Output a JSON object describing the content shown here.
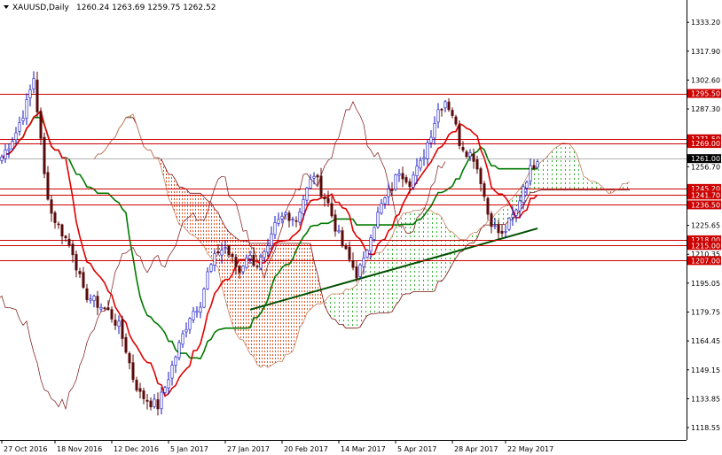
{
  "header": {
    "symbol": "XAUUSD,Daily",
    "ohlc": "1260.24 1263.69 1259.75 1262.52"
  },
  "colors": {
    "bull_candle": "#1010c0",
    "bear_candle": "#5a0a0a",
    "tenkan": "#e00000",
    "kijun": "#007a00",
    "trendline": "#005000",
    "span_a": "#c88060",
    "span_b": "#7a1010",
    "cloud_bear": "#e05020",
    "cloud_bull": "#30b030",
    "hline": "#cc0000",
    "label_bg": "#cc0000",
    "current_label_bg": "#000000"
  },
  "chart_data": {
    "type": "candlestick",
    "instrument": "XAUUSD",
    "timeframe": "Daily",
    "ylim": [
      1112,
      1345
    ],
    "y_ticks": [
      "1333.20",
      "1317.90",
      "1302.60",
      "1287.30",
      "1256.70",
      "1225.65",
      "1210.35",
      "1195.05",
      "1179.75",
      "1164.45",
      "1149.15",
      "1133.85",
      "1118.55"
    ],
    "x_ticks": [
      "27 Oct 2016",
      "18 Nov 2016",
      "12 Dec 2016",
      "5 Jan 2017",
      "27 Jan 2017",
      "20 Feb 2017",
      "14 Mar 2017",
      "5 Apr 2017",
      "28 Apr 2017",
      "22 May 2017"
    ],
    "horizontal_levels": [
      "1295.50",
      "1271.50",
      "1269.00",
      "1261.00",
      "1245.20",
      "1241.70",
      "1236.50",
      "1218.00",
      "1215.00",
      "1207.00"
    ],
    "current_price": "1261.00",
    "price_keypoints": [
      [
        0,
        1262
      ],
      [
        4,
        1275
      ],
      [
        7,
        1290
      ],
      [
        9,
        1304
      ],
      [
        11,
        1270
      ],
      [
        12,
        1252
      ],
      [
        14,
        1232
      ],
      [
        17,
        1222
      ],
      [
        20,
        1212
      ],
      [
        23,
        1190
      ],
      [
        27,
        1184
      ],
      [
        30,
        1180
      ],
      [
        33,
        1172
      ],
      [
        35,
        1160
      ],
      [
        37,
        1145
      ],
      [
        39,
        1136
      ],
      [
        42,
        1132
      ],
      [
        44,
        1130
      ],
      [
        46,
        1140
      ],
      [
        50,
        1162
      ],
      [
        53,
        1178
      ],
      [
        56,
        1185
      ],
      [
        58,
        1200
      ],
      [
        61,
        1212
      ],
      [
        63,
        1214
      ],
      [
        65,
        1207
      ],
      [
        67,
        1201
      ],
      [
        69,
        1210
      ],
      [
        72,
        1205
      ],
      [
        75,
        1212
      ],
      [
        77,
        1225
      ],
      [
        80,
        1232
      ],
      [
        83,
        1229
      ],
      [
        85,
        1240
      ],
      [
        88,
        1253
      ],
      [
        90,
        1244
      ],
      [
        92,
        1237
      ],
      [
        94,
        1225
      ],
      [
        96,
        1215
      ],
      [
        98,
        1207
      ],
      [
        100,
        1200
      ],
      [
        102,
        1206
      ],
      [
        104,
        1222
      ],
      [
        107,
        1236
      ],
      [
        110,
        1246
      ],
      [
        112,
        1255
      ],
      [
        115,
        1249
      ],
      [
        118,
        1258
      ],
      [
        121,
        1275
      ],
      [
        123,
        1287
      ],
      [
        125,
        1292
      ],
      [
        127,
        1285
      ],
      [
        129,
        1270
      ],
      [
        131,
        1265
      ],
      [
        133,
        1262
      ],
      [
        135,
        1250
      ],
      [
        137,
        1232
      ],
      [
        139,
        1224
      ],
      [
        141,
        1220
      ],
      [
        143,
        1227
      ],
      [
        145,
        1233
      ],
      [
        147,
        1247
      ],
      [
        149,
        1255
      ],
      [
        151,
        1262
      ]
    ],
    "trendline": [
      [
        70,
        1181
      ],
      [
        151,
        1224
      ]
    ]
  }
}
